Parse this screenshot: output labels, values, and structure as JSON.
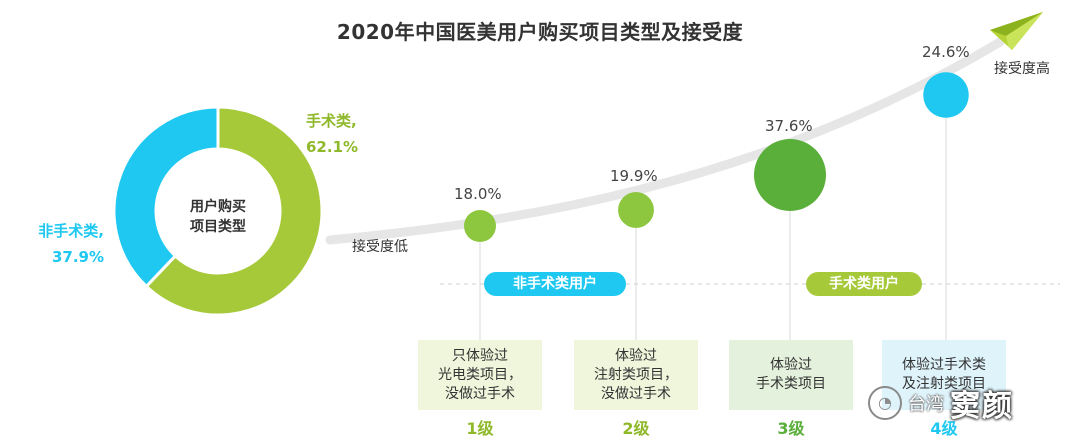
{
  "chart_data": [
    {
      "type": "pie",
      "center_label": [
        "用户购买",
        "项目类型"
      ],
      "slices": [
        {
          "name": "手术类,",
          "value": 62.1,
          "value_label": "62.1%",
          "color": "#a6c93a"
        },
        {
          "name": "非手术类,",
          "value": 37.9,
          "value_label": "37.9%",
          "color": "#1ec8f0"
        }
      ]
    },
    {
      "type": "scatter",
      "title": "2020年中国医美用户购买项目类型及接受度",
      "axis_low_label": "接受度低",
      "axis_high_label": "接受度高",
      "points": [
        {
          "level": "1级",
          "value": 18.0,
          "value_label": "18.0%",
          "desc": [
            "只体验过",
            "光电类项目，",
            "没做过手术"
          ],
          "color": "#8dc63f"
        },
        {
          "level": "2级",
          "value": 19.9,
          "value_label": "19.9%",
          "desc": [
            "体验过",
            "注射类项目，",
            "没做过手术"
          ],
          "color": "#8dc63f"
        },
        {
          "level": "3级",
          "value": 37.6,
          "value_label": "37.6%",
          "desc": [
            "体验过",
            "手术类项目"
          ],
          "color": "#5aae3a"
        },
        {
          "level": "4级",
          "value": 24.6,
          "value_label": "24.6%",
          "desc": [
            "体验过手术类",
            "及注射类项目"
          ],
          "color": "#1ec8f0"
        }
      ],
      "groups": [
        {
          "label": "非手术类用户",
          "levels": [
            "1级",
            "2级"
          ],
          "color": "#1ec8f0"
        },
        {
          "label": "手术类用户",
          "levels": [
            "3级",
            "4级"
          ],
          "color": "#a6c93a"
        }
      ]
    }
  ],
  "watermark": {
    "logo_icon": "wechat-icon",
    "text1": "台湾",
    "text2": "窦颜"
  }
}
